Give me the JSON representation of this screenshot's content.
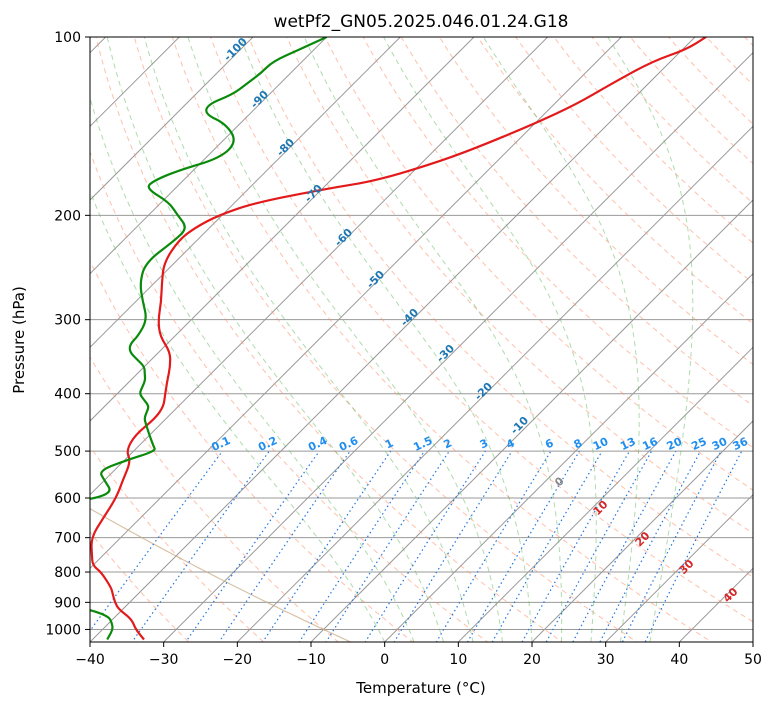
{
  "chart_data": {
    "type": "line",
    "title": "wetPf2_GN05.2025.046.01.24.G18",
    "xlabel": "Temperature (°C)",
    "ylabel": "Pressure (hPa)",
    "xlim": [
      -40,
      50
    ],
    "ylim": [
      1050,
      100
    ],
    "y_scale": "log",
    "x_ticks": [
      -40,
      -30,
      -20,
      -10,
      0,
      10,
      20,
      30,
      40,
      50
    ],
    "y_ticks": [
      100,
      200,
      300,
      400,
      500,
      600,
      700,
      800,
      900,
      1000
    ],
    "skew": 45,
    "colors": {
      "temperature": "#e31a1c",
      "dewpoint": "#0a8a0a",
      "isotherm": "#999999",
      "dry_adiabat": "#ff8c66",
      "moist_adiabat": "#5fb85f",
      "mixing_ratio": "#1f77e0",
      "dry_label": "#d62728",
      "moist_label": "#1f77b4",
      "mixing_label": "#1f8ef1",
      "tan_curve": "#c8a882"
    },
    "series": [
      {
        "name": "Temperature",
        "pressure": [
          1040,
          1000,
          960,
          925,
          900,
          870,
          850,
          800,
          780,
          750,
          700,
          650,
          600,
          560,
          520,
          500,
          470,
          440,
          420,
          400,
          380,
          360,
          340,
          320,
          300,
          280,
          260,
          240,
          220,
          210,
          200,
          190,
          180,
          175,
          165,
          155,
          140,
          130,
          120,
          110,
          105,
          100
        ],
        "temperature": [
          -33,
          -35.5,
          -37.5,
          -40.5,
          -42,
          -43.5,
          -44.5,
          -48,
          -50,
          -51.5,
          -54,
          -55,
          -56,
          -57.5,
          -59,
          -61,
          -62,
          -61.5,
          -62,
          -63.5,
          -65,
          -66.5,
          -68.5,
          -72,
          -74.5,
          -76.5,
          -79,
          -81.5,
          -82.5,
          -82,
          -80.5,
          -77,
          -69,
          -64,
          -59,
          -55,
          -50,
          -47,
          -45,
          -42.5,
          -39.5,
          -38.5
        ]
      },
      {
        "name": "Dewpoint",
        "pressure": [
          1040,
          1000,
          975,
          950,
          925,
          900,
          875,
          850,
          820,
          800,
          790,
          770,
          760,
          740,
          720,
          700,
          670,
          650,
          630,
          610,
          590,
          560,
          540,
          520,
          500,
          490,
          480,
          470,
          460,
          450,
          440,
          430,
          420,
          410,
          400,
          390,
          380,
          370,
          360,
          350,
          340,
          330,
          320,
          300,
          280,
          260,
          240,
          220,
          210,
          200,
          190,
          180,
          175,
          168,
          160,
          150,
          140,
          135,
          130,
          125,
          120,
          115,
          110,
          105,
          100
        ],
        "dewpoint": [
          -38,
          -38.6,
          -39.6,
          -41,
          -44.6,
          -50,
          -56,
          -61,
          -65,
          -68,
          -70,
          -71,
          -72,
          -70,
          -68,
          -67.5,
          -67,
          -68,
          -65,
          -61,
          -57,
          -60,
          -62,
          -60,
          -57,
          -58,
          -59,
          -60,
          -61,
          -62,
          -63,
          -63.5,
          -64,
          -65.5,
          -67,
          -67.5,
          -68,
          -69,
          -70,
          -72,
          -74,
          -75,
          -75,
          -76,
          -79,
          -82,
          -84,
          -83,
          -83,
          -86,
          -89,
          -94,
          -94,
          -92,
          -88,
          -88,
          -92,
          -96,
          -97,
          -95,
          -94.5,
          -94,
          -94,
          -92,
          -90
        ]
      }
    ],
    "annotations": {
      "dry_adiabat_labels": [
        {
          "text": "0",
          "theta_c": 0
        },
        {
          "text": "10",
          "theta_c": 10
        },
        {
          "text": "20",
          "theta_c": 20
        },
        {
          "text": "30",
          "theta_c": 30
        },
        {
          "text": "40",
          "theta_c": 40
        }
      ],
      "moist_adiabat_labels": [
        {
          "text": "-100"
        },
        {
          "text": "-90"
        },
        {
          "text": "-80"
        },
        {
          "text": "-70"
        },
        {
          "text": "-60"
        },
        {
          "text": "-50"
        },
        {
          "text": "-40"
        },
        {
          "text": "-30"
        },
        {
          "text": "-20"
        },
        {
          "text": "-10"
        }
      ],
      "mixing_ratio_labels": [
        {
          "text": "0.1",
          "w": 0.1
        },
        {
          "text": "0.2",
          "w": 0.2
        },
        {
          "text": "0.4",
          "w": 0.4
        },
        {
          "text": "0.6",
          "w": 0.6
        },
        {
          "text": "1",
          "w": 1
        },
        {
          "text": "1.5",
          "w": 1.5
        },
        {
          "text": "2",
          "w": 2
        },
        {
          "text": "3",
          "w": 3
        },
        {
          "text": "4",
          "w": 4
        },
        {
          "text": "6",
          "w": 6
        },
        {
          "text": "8",
          "w": 8
        },
        {
          "text": "10",
          "w": 10
        },
        {
          "text": "13",
          "w": 13
        },
        {
          "text": "16",
          "w": 16
        },
        {
          "text": "20",
          "w": 20
        },
        {
          "text": "25",
          "w": 25
        },
        {
          "text": "30",
          "w": 30
        },
        {
          "text": "36",
          "w": 36
        }
      ]
    },
    "grid": true
  }
}
